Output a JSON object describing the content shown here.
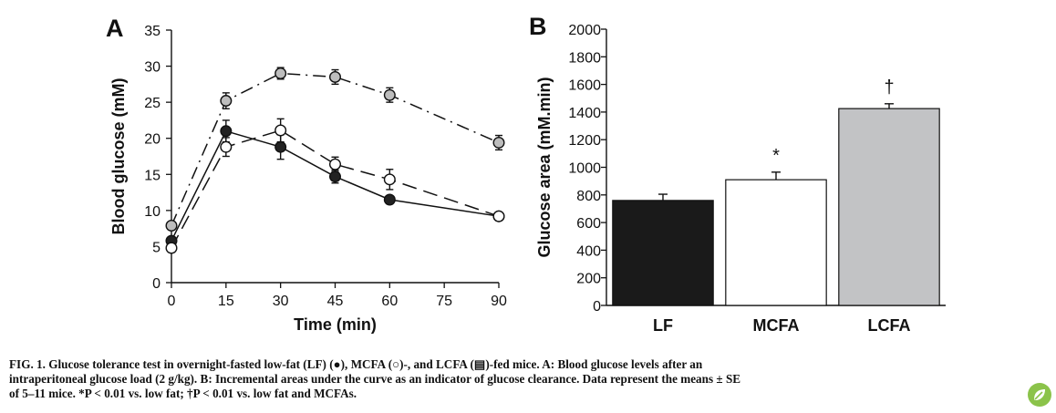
{
  "chart_data": [
    {
      "type": "line",
      "panel_label": "A",
      "xlabel": "Time (min)",
      "ylabel": "Blood glucose (mM)",
      "xlim": [
        0,
        90
      ],
      "ylim": [
        0,
        35
      ],
      "x_ticks": [
        0,
        15,
        30,
        45,
        60,
        75,
        90
      ],
      "y_ticks": [
        0,
        5,
        10,
        15,
        20,
        25,
        30,
        35
      ],
      "grid": false,
      "series": [
        {
          "key": "LF",
          "marker": "filled",
          "color": "#222222",
          "dash": "solid",
          "x": [
            0,
            15,
            30,
            45,
            60,
            90
          ],
          "y": [
            5.8,
            21.0,
            18.8,
            14.7,
            11.5,
            9.2
          ],
          "err": [
            0.5,
            1.5,
            1.7,
            0.9,
            0.5,
            0.4
          ]
        },
        {
          "key": "MCFA",
          "marker": "open",
          "color": "#ffffff",
          "dash": "long-dash",
          "x": [
            0,
            15,
            30,
            45,
            60,
            90
          ],
          "y": [
            4.8,
            18.8,
            21.1,
            16.4,
            14.3,
            9.2
          ],
          "err": [
            0.4,
            1.3,
            1.6,
            1.0,
            1.4,
            0.4
          ]
        },
        {
          "key": "LCFA",
          "marker": "gray",
          "color": "#bdbdbd",
          "dash": "dash-dot",
          "x": [
            0,
            15,
            30,
            45,
            60,
            90
          ],
          "y": [
            7.9,
            25.2,
            29.0,
            28.5,
            26.0,
            19.4
          ],
          "err": [
            0.5,
            1.1,
            0.8,
            1.0,
            1.0,
            1.0
          ]
        }
      ]
    },
    {
      "type": "bar",
      "panel_label": "B",
      "xlabel": "",
      "ylabel": "Glucose area (mM.min)",
      "categories": [
        "LF",
        "MCFA",
        "LCFA"
      ],
      "values": [
        760,
        910,
        1425
      ],
      "errors": [
        45,
        55,
        35
      ],
      "colors": [
        "#1a1a1a",
        "#ffffff",
        "#c2c3c5"
      ],
      "annotations": [
        "",
        "*",
        "†"
      ],
      "ylim": [
        0,
        2000
      ],
      "y_ticks": [
        0,
        200,
        400,
        600,
        800,
        1000,
        1200,
        1400,
        1600,
        1800,
        2000
      ],
      "grid": false
    }
  ],
  "caption": {
    "line1": "FIG. 1. Glucose tolerance test in overnight-fasted low-fat (LF) (●), MCFA (○)-, and LCFA (▤)-fed mice. A: Blood glucose levels after an",
    "line2": "intraperitoneal glucose load (2 g/kg). B: Incremental areas under the curve as an indicator of glucose clearance. Data represent the means ± SE",
    "line3": "of 5–11 mice. *P < 0.01 vs. low fat; †P < 0.01 vs. low fat and MCFAs."
  }
}
